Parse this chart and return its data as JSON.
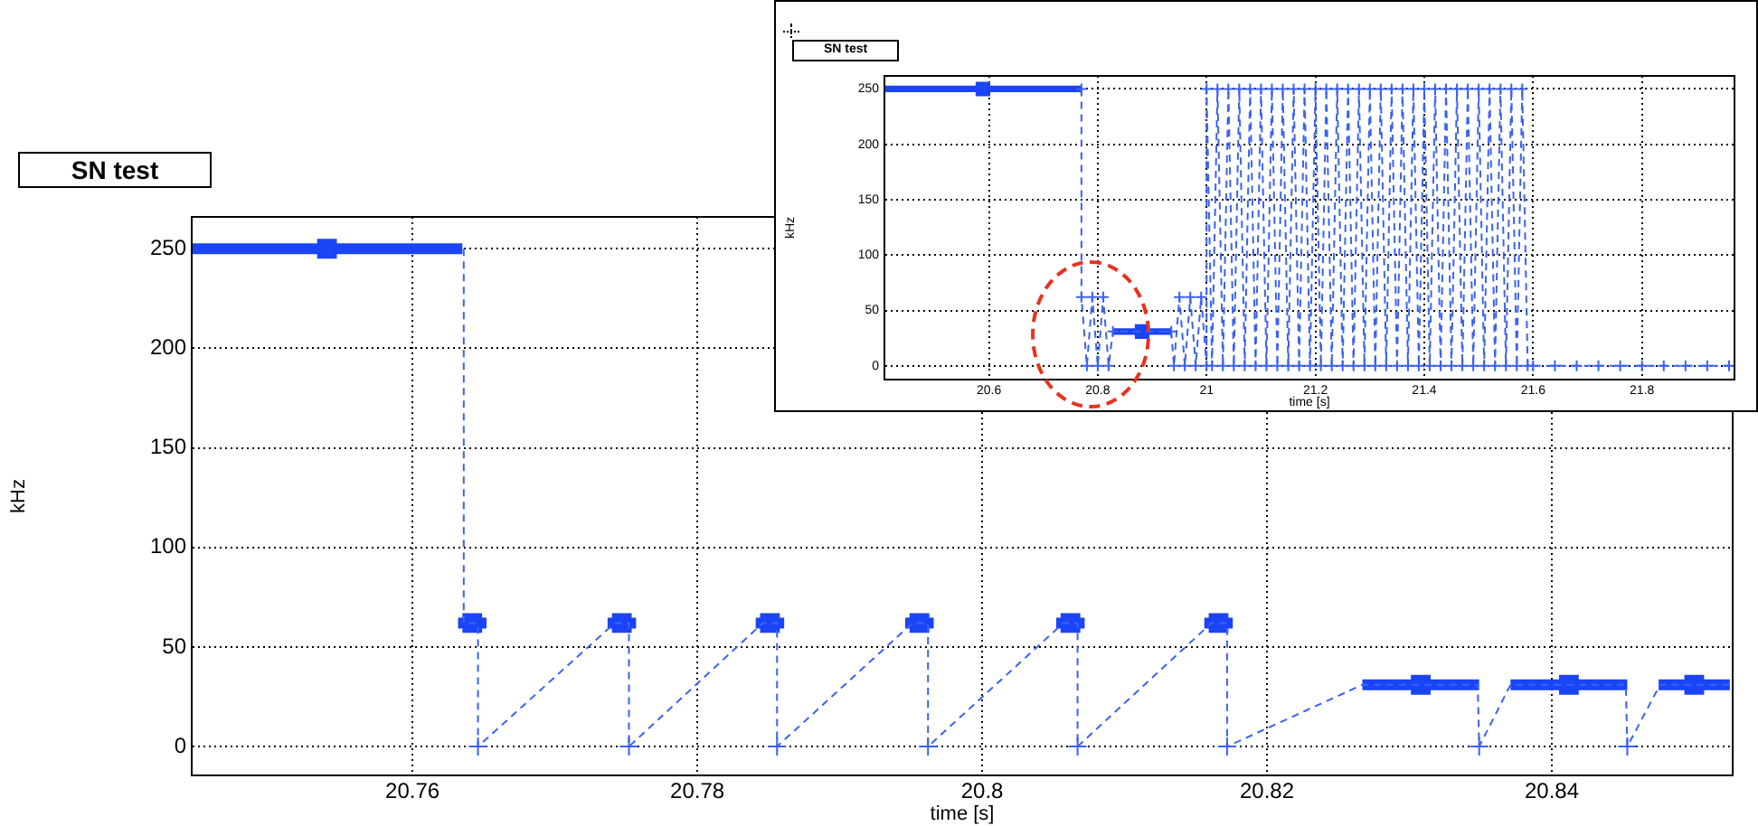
{
  "chart_data": [
    {
      "type": "line",
      "title": "SN test",
      "xlabel": "time [s]",
      "ylabel": "kHz",
      "xlim": [
        20.7445,
        20.8527
      ],
      "ylim": [
        -14.5,
        266
      ],
      "xticks": [
        20.76,
        20.78,
        20.8,
        20.82,
        20.84
      ],
      "yticks": [
        0,
        50,
        100,
        150,
        200,
        250
      ],
      "grid": true,
      "legend": false,
      "series": [
        {
          "type": "line",
          "line_style": "dashed",
          "marker": "none",
          "color": "#3a62f2",
          "x": [
            20.7636,
            20.7636,
            20.7646,
            20.7646,
            20.7742,
            20.7752,
            20.7752,
            20.7846,
            20.7856,
            20.7856,
            20.7951,
            20.7962,
            20.7962,
            20.8057,
            20.8067,
            20.8067,
            20.8161,
            20.8172,
            20.8172,
            20.8267,
            20.8348,
            20.8349,
            20.8371,
            20.8452,
            20.8453,
            20.8476,
            20.8525
          ],
          "values": [
            250,
            62,
            62,
            0,
            62,
            62,
            0,
            62,
            62,
            0,
            62,
            62,
            0,
            62,
            62,
            0,
            62,
            62,
            0,
            31,
            31,
            0,
            31,
            31,
            0,
            31,
            31
          ]
        },
        {
          "type": "scatter",
          "marker": "square",
          "color": "#1a44f5",
          "x": [
            20.754,
            20.7642,
            20.7747,
            20.7851,
            20.7956,
            20.8062,
            20.8166,
            20.8308,
            20.8412,
            20.85
          ],
          "values": [
            250,
            62,
            62,
            62,
            62,
            62,
            62,
            31,
            31,
            31
          ],
          "xerrors": [
            0.0095,
            0.001,
            0.001,
            0.001,
            0.001,
            0.001,
            0.001,
            0.0041,
            0.0041,
            0.0025
          ]
        },
        {
          "type": "scatter",
          "marker": "cross",
          "color": "#3a62f2",
          "x": [
            20.7646,
            20.7752,
            20.7856,
            20.7962,
            20.8067,
            20.8172,
            20.8349,
            20.8453
          ],
          "values": [
            0,
            0,
            0,
            0,
            0,
            0,
            0,
            0
          ]
        }
      ]
    },
    {
      "type": "line",
      "title": "SN test",
      "xlabel": "time [s]",
      "ylabel": "kHz",
      "xlim": [
        20.408,
        21.97
      ],
      "ylim": [
        -12.4,
        261.8
      ],
      "xticks": [
        20.6,
        20.8,
        21,
        21.2,
        21.4,
        21.6,
        21.8
      ],
      "yticks": [
        0,
        50,
        100,
        150,
        200,
        250
      ],
      "grid": true,
      "legend": false,
      "series": [
        {
          "type": "line",
          "line_style": "dashed",
          "marker": "cross",
          "color": "#3a62f2",
          "x": [
            20.77,
            20.77,
            20.78,
            20.79,
            20.8,
            20.81,
            20.82,
            20.828,
            20.935,
            20.94,
            20.95,
            20.96,
            20.97,
            20.98,
            20.99,
            21.0,
            21.0,
            21.01,
            21.02,
            21.03,
            21.04,
            21.05,
            21.06,
            21.07,
            21.08,
            21.09,
            21.1,
            21.11,
            21.12,
            21.13,
            21.14,
            21.15,
            21.16,
            21.17,
            21.18,
            21.19,
            21.2,
            21.21,
            21.22,
            21.23,
            21.24,
            21.25,
            21.26,
            21.27,
            21.28,
            21.29,
            21.3,
            21.31,
            21.32,
            21.33,
            21.34,
            21.35,
            21.36,
            21.37,
            21.38,
            21.39,
            21.4,
            21.41,
            21.42,
            21.43,
            21.44,
            21.45,
            21.46,
            21.47,
            21.48,
            21.49,
            21.5,
            21.51,
            21.52,
            21.53,
            21.54,
            21.55,
            21.56,
            21.57,
            21.58,
            21.59,
            21.6,
            21.64,
            21.68,
            21.72,
            21.76,
            21.8,
            21.84,
            21.88,
            21.92,
            21.96
          ],
          "values": [
            250,
            62,
            0,
            62,
            0,
            62,
            0,
            31,
            31,
            0,
            62,
            0,
            62,
            0,
            62,
            0,
            250,
            0,
            250,
            0,
            250,
            0,
            250,
            0,
            250,
            0,
            250,
            0,
            250,
            0,
            250,
            0,
            250,
            0,
            250,
            0,
            250,
            0,
            250,
            0,
            250,
            0,
            250,
            0,
            250,
            0,
            250,
            0,
            250,
            0,
            250,
            0,
            250,
            0,
            250,
            0,
            250,
            0,
            250,
            0,
            250,
            0,
            250,
            0,
            250,
            0,
            250,
            0,
            250,
            0,
            250,
            0,
            250,
            0,
            250,
            0,
            0,
            0,
            0,
            0,
            0,
            0,
            0,
            0,
            0,
            0
          ]
        },
        {
          "type": "scatter",
          "marker": "square",
          "color": "#1a44f5",
          "x": [
            20.589,
            20.8815
          ],
          "values": [
            250,
            31
          ],
          "xerrors": [
            0.181,
            0.0535
          ]
        }
      ]
    }
  ]
}
